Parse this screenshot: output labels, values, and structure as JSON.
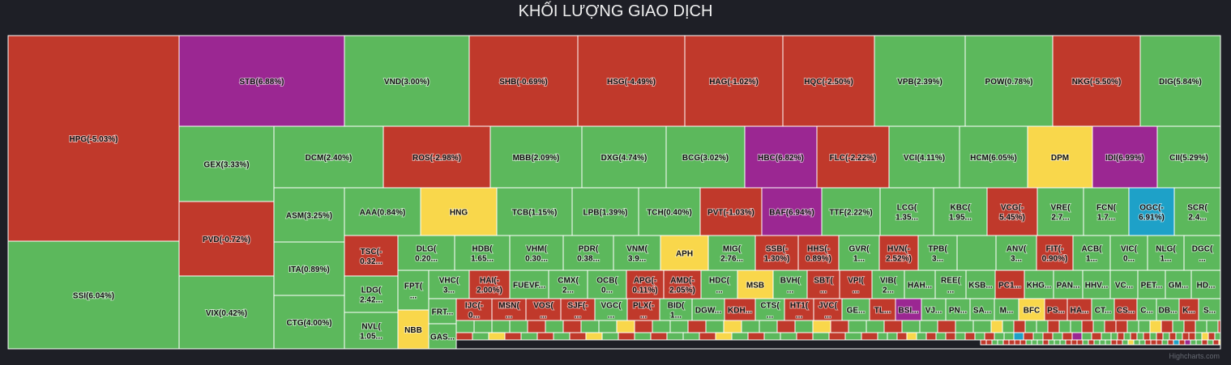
{
  "title": "KHỐI LƯỢNG GIAO DỊCH",
  "credits": "Highcharts.com",
  "colors": {
    "background": "#1e1f26",
    "up": "#5cb85c",
    "down": "#c0392b",
    "ceiling": "#9b2792",
    "reference": "#f9d74b",
    "floor": "#1ea1c8",
    "border": "#ffffff"
  },
  "chart_data": {
    "type": "treemap",
    "title": "KHỐI LƯỢNG GIAO DỊCH",
    "tiles": [
      {
        "ticker": "HPG",
        "change_pct": -5.03,
        "label": "HPG(-5.03%)",
        "status": "down"
      },
      {
        "ticker": "SSI",
        "change_pct": 6.04,
        "label": "SSI(6.04%)",
        "status": "up"
      },
      {
        "ticker": "STB",
        "change_pct": 6.88,
        "label": "STB(6.88%)",
        "status": "ceiling"
      },
      {
        "ticker": "VND",
        "change_pct": 3.0,
        "label": "VND(3.00%)",
        "status": "up"
      },
      {
        "ticker": "SHB",
        "change_pct": -0.69,
        "label": "SHB(-0.69%)",
        "status": "down"
      },
      {
        "ticker": "HSG",
        "change_pct": -4.49,
        "label": "HSG(-4.49%)",
        "status": "down"
      },
      {
        "ticker": "HAG",
        "change_pct": -1.02,
        "label": "HAG(-1.02%)",
        "status": "down"
      },
      {
        "ticker": "HQC",
        "change_pct": -2.5,
        "label": "HQC(-2.50%)",
        "status": "down"
      },
      {
        "ticker": "VPB",
        "change_pct": 2.39,
        "label": "VPB(2.39%)",
        "status": "up"
      },
      {
        "ticker": "POW",
        "change_pct": 0.78,
        "label": "POW(0.78%)",
        "status": "up"
      },
      {
        "ticker": "NKG",
        "change_pct": -5.5,
        "label": "NKG(-5.50%)",
        "status": "down"
      },
      {
        "ticker": "DIG",
        "change_pct": 5.84,
        "label": "DIG(5.84%)",
        "status": "up"
      },
      {
        "ticker": "GEX",
        "change_pct": 3.33,
        "label": "GEX(3.33%)",
        "status": "up"
      },
      {
        "ticker": "PVD",
        "change_pct": -0.72,
        "label": "PVD(-0.72%)",
        "status": "down"
      },
      {
        "ticker": "VIX",
        "change_pct": 0.42,
        "label": "VIX(0.42%)",
        "status": "up"
      },
      {
        "ticker": "DCM",
        "change_pct": 2.4,
        "label": "DCM(2.40%)",
        "status": "up"
      },
      {
        "ticker": "ROS",
        "change_pct": -2.98,
        "label": "ROS(-2.98%)",
        "status": "down"
      },
      {
        "ticker": "MBB",
        "change_pct": 2.09,
        "label": "MBB(2.09%)",
        "status": "up"
      },
      {
        "ticker": "DXG",
        "change_pct": 4.74,
        "label": "DXG(4.74%)",
        "status": "up"
      },
      {
        "ticker": "BCG",
        "change_pct": 3.02,
        "label": "BCG(3.02%)",
        "status": "up"
      },
      {
        "ticker": "HBC",
        "change_pct": 6.82,
        "label": "HBC(6.82%)",
        "status": "ceiling"
      },
      {
        "ticker": "FLC",
        "change_pct": -2.22,
        "label": "FLC(-2.22%)",
        "status": "down"
      },
      {
        "ticker": "VCI",
        "change_pct": 4.11,
        "label": "VCI(4.11%)",
        "status": "up"
      },
      {
        "ticker": "HCM",
        "change_pct": 6.05,
        "label": "HCM(6.05%)",
        "status": "up"
      },
      {
        "ticker": "DPM",
        "change_pct": null,
        "label": "DPM",
        "status": "reference"
      },
      {
        "ticker": "IDI",
        "change_pct": 6.99,
        "label": "IDI(6.99%)",
        "status": "ceiling"
      },
      {
        "ticker": "CII",
        "change_pct": 5.29,
        "label": "CII(5.29%)",
        "status": "up"
      },
      {
        "ticker": "ASM",
        "change_pct": 3.25,
        "label": "ASM(3.25%)",
        "status": "up"
      },
      {
        "ticker": "ITA",
        "change_pct": 0.89,
        "label": "ITA(0.89%)",
        "status": "up"
      },
      {
        "ticker": "CTG",
        "change_pct": 4.0,
        "label": "CTG(4.00%)",
        "status": "up"
      },
      {
        "ticker": "AAA",
        "change_pct": 0.84,
        "label": "AAA(0.84%)",
        "status": "up"
      },
      {
        "ticker": "HNG",
        "change_pct": null,
        "label": "HNG",
        "status": "reference"
      },
      {
        "ticker": "TCB",
        "change_pct": 1.15,
        "label": "TCB(1.15%)",
        "status": "up"
      },
      {
        "ticker": "LPB",
        "change_pct": 1.39,
        "label": "LPB(1.39%)",
        "status": "up"
      },
      {
        "ticker": "TCH",
        "change_pct": 0.4,
        "label": "TCH(0.40%)",
        "status": "up"
      },
      {
        "ticker": "PVT",
        "change_pct": -1.03,
        "label": "PVT(-1.03%)",
        "status": "down"
      },
      {
        "ticker": "BAF",
        "change_pct": 6.94,
        "label": "BAF(6.94%)",
        "status": "ceiling"
      },
      {
        "ticker": "TTF",
        "change_pct": 2.22,
        "label": "TTF(2.22%)",
        "status": "up"
      },
      {
        "ticker": "LCG",
        "change_pct": null,
        "label": "LCG(1.35...",
        "status": "up"
      },
      {
        "ticker": "KBC",
        "change_pct": null,
        "label": "KBC(1.95...",
        "status": "up"
      },
      {
        "ticker": "VCG",
        "change_pct": -5.45,
        "label": "VCG(-5.45%)",
        "status": "down"
      },
      {
        "ticker": "VRE",
        "change_pct": null,
        "label": "VRE(2.7...",
        "status": "up"
      },
      {
        "ticker": "FCN",
        "change_pct": null,
        "label": "FCN(1.7...",
        "status": "up"
      },
      {
        "ticker": "OGC",
        "change_pct": -6.91,
        "label": "OGC(-6.91%)",
        "status": "floor"
      },
      {
        "ticker": "SCR",
        "change_pct": null,
        "label": "SCR(2.4...",
        "status": "up"
      },
      {
        "ticker": "LDG",
        "change_pct": null,
        "label": "LDG(2.42...",
        "status": "up"
      },
      {
        "ticker": "NVL",
        "change_pct": null,
        "label": "NVL(1.05...",
        "status": "up"
      },
      {
        "ticker": "TSC",
        "change_pct": null,
        "label": "TSC(-0.32...",
        "status": "down"
      },
      {
        "ticker": "DLG",
        "change_pct": null,
        "label": "DLG(0.20...",
        "status": "up"
      },
      {
        "ticker": "HDB",
        "change_pct": null,
        "label": "HDB(1.65...",
        "status": "up"
      },
      {
        "ticker": "VHM",
        "change_pct": null,
        "label": "VHM(0.30...",
        "status": "up"
      },
      {
        "ticker": "PDR",
        "change_pct": null,
        "label": "PDR(0.38...",
        "status": "up"
      },
      {
        "ticker": "VNM",
        "change_pct": null,
        "label": "VNM(3.9...",
        "status": "up"
      },
      {
        "ticker": "APH",
        "change_pct": null,
        "label": "APH",
        "status": "reference"
      },
      {
        "ticker": "MIG",
        "change_pct": null,
        "label": "MIG(2.76...",
        "status": "up"
      },
      {
        "ticker": "SSB",
        "change_pct": -1.3,
        "label": "SSB(-1.30%)",
        "status": "down"
      },
      {
        "ticker": "HHS",
        "change_pct": -0.89,
        "label": "HHS(-0.89%)",
        "status": "down"
      },
      {
        "ticker": "GVR",
        "change_pct": null,
        "label": "GVR(1...",
        "status": "up"
      },
      {
        "ticker": "HVN",
        "change_pct": -2.52,
        "label": "HVN(-2.52%)",
        "status": "down"
      },
      {
        "ticker": "TPB",
        "change_pct": null,
        "label": "TPB(3...",
        "status": "up"
      },
      {
        "ticker": "ANV",
        "change_pct": null,
        "label": "ANV(3...",
        "status": "up"
      },
      {
        "ticker": "FIT",
        "change_pct": -0.9,
        "label": "FIT(-0.90%)",
        "status": "down"
      },
      {
        "ticker": "ACB",
        "change_pct": null,
        "label": "ACB(1...",
        "status": "up"
      },
      {
        "ticker": "VIC",
        "change_pct": null,
        "label": "VIC(0...",
        "status": "up"
      },
      {
        "ticker": "NLG",
        "change_pct": null,
        "label": "NLG(1...",
        "status": "up"
      },
      {
        "ticker": "DGC",
        "change_pct": null,
        "label": "DGC(...",
        "status": "up"
      },
      {
        "ticker": "FPT",
        "change_pct": null,
        "label": "FPT(...",
        "status": "up"
      },
      {
        "ticker": "VHC",
        "change_pct": null,
        "label": "VHC(3...",
        "status": "up"
      },
      {
        "ticker": "HAI",
        "change_pct": -2.0,
        "label": "HAI(-2.00%)",
        "status": "down"
      },
      {
        "ticker": "FUEVFVND",
        "change_pct": null,
        "label": "FUEVF...",
        "status": "up"
      },
      {
        "ticker": "CMX",
        "change_pct": null,
        "label": "CMX(2...",
        "status": "up"
      },
      {
        "ticker": "OCB",
        "change_pct": null,
        "label": "OCB(0...",
        "status": "up"
      },
      {
        "ticker": "APG",
        "change_pct": -0.11,
        "label": "APG(-0.11%)",
        "status": "down"
      },
      {
        "ticker": "AMD",
        "change_pct": -2.05,
        "label": "AMD(-2.05%)",
        "status": "down"
      },
      {
        "ticker": "HDC",
        "change_pct": null,
        "label": "HDC(...",
        "status": "up"
      },
      {
        "ticker": "MSB",
        "change_pct": null,
        "label": "MSB",
        "status": "reference"
      },
      {
        "ticker": "BVH",
        "change_pct": null,
        "label": "BVH(...",
        "status": "up"
      },
      {
        "ticker": "SBT",
        "change_pct": null,
        "label": "SBT(...",
        "status": "down"
      },
      {
        "ticker": "VPI",
        "change_pct": null,
        "label": "VPI(...",
        "status": "down"
      },
      {
        "ticker": "VIB",
        "change_pct": null,
        "label": "VIB(2...",
        "status": "up"
      },
      {
        "ticker": "HAH",
        "change_pct": null,
        "label": "HAH...",
        "status": "up"
      },
      {
        "ticker": "REE",
        "change_pct": null,
        "label": "REE(...",
        "status": "up"
      },
      {
        "ticker": "KSB",
        "change_pct": null,
        "label": "KSB...",
        "status": "up"
      },
      {
        "ticker": "PC1",
        "change_pct": null,
        "label": "PC1...",
        "status": "down"
      },
      {
        "ticker": "KHG",
        "change_pct": null,
        "label": "KHG...",
        "status": "up"
      },
      {
        "ticker": "PAN",
        "change_pct": null,
        "label": "PAN...",
        "status": "up"
      },
      {
        "ticker": "HHV",
        "change_pct": null,
        "label": "HHV...",
        "status": "up"
      },
      {
        "ticker": "VC",
        "change_pct": null,
        "label": "VC...",
        "status": "up"
      },
      {
        "ticker": "PET",
        "change_pct": null,
        "label": "PET...",
        "status": "up"
      },
      {
        "ticker": "GM",
        "change_pct": null,
        "label": "GM...",
        "status": "up"
      },
      {
        "ticker": "HD",
        "change_pct": null,
        "label": "HD...",
        "status": "up"
      },
      {
        "ticker": "NBB",
        "change_pct": null,
        "label": "NBB",
        "status": "reference"
      },
      {
        "ticker": "FRT",
        "change_pct": null,
        "label": "FRT...",
        "status": "up"
      },
      {
        "ticker": "GAS",
        "change_pct": null,
        "label": "GAS...",
        "status": "up"
      },
      {
        "ticker": "IJC",
        "change_pct": null,
        "label": "IJC(-0...",
        "status": "down"
      },
      {
        "ticker": "MSN",
        "change_pct": null,
        "label": "MSN(...",
        "status": "down"
      },
      {
        "ticker": "VOS",
        "change_pct": null,
        "label": "VOS(...",
        "status": "down"
      },
      {
        "ticker": "SJF",
        "change_pct": null,
        "label": "SJF(-...",
        "status": "down"
      },
      {
        "ticker": "VGC",
        "change_pct": null,
        "label": "VGC(...",
        "status": "up"
      },
      {
        "ticker": "PLX",
        "change_pct": null,
        "label": "PLX(-...",
        "status": "down"
      },
      {
        "ticker": "BID",
        "change_pct": null,
        "label": "BID(1...",
        "status": "up"
      },
      {
        "ticker": "DGW",
        "change_pct": null,
        "label": "DGW...",
        "status": "up"
      },
      {
        "ticker": "KDH",
        "change_pct": null,
        "label": "KDH...",
        "status": "down"
      },
      {
        "ticker": "CTS",
        "change_pct": null,
        "label": "CTS(...",
        "status": "up"
      },
      {
        "ticker": "HT1",
        "change_pct": null,
        "label": "HT1(...",
        "status": "down"
      },
      {
        "ticker": "JVC",
        "change_pct": null,
        "label": "JVC(...",
        "status": "down"
      },
      {
        "ticker": "GE",
        "change_pct": null,
        "label": "GE...",
        "status": "up"
      },
      {
        "ticker": "TL",
        "change_pct": null,
        "label": "TL...",
        "status": "down"
      },
      {
        "ticker": "BSI",
        "change_pct": null,
        "label": "BSI...",
        "status": "ceiling"
      },
      {
        "ticker": "VJ",
        "change_pct": null,
        "label": "VJ...",
        "status": "up"
      },
      {
        "ticker": "PN",
        "change_pct": null,
        "label": "PN...",
        "status": "up"
      },
      {
        "ticker": "SA",
        "change_pct": null,
        "label": "SA...",
        "status": "up"
      },
      {
        "ticker": "M",
        "change_pct": null,
        "label": "M...",
        "status": "up"
      },
      {
        "ticker": "BFC",
        "change_pct": null,
        "label": "BFC",
        "status": "reference"
      },
      {
        "ticker": "PS",
        "change_pct": null,
        "label": "PS...",
        "status": "down"
      },
      {
        "ticker": "HA",
        "change_pct": null,
        "label": "HA...",
        "status": "down"
      },
      {
        "ticker": "CT",
        "change_pct": null,
        "label": "CT...",
        "status": "up"
      },
      {
        "ticker": "CS",
        "change_pct": null,
        "label": "CS...",
        "status": "down"
      },
      {
        "ticker": "C",
        "change_pct": null,
        "label": "C...",
        "status": "up"
      },
      {
        "ticker": "DB",
        "change_pct": null,
        "label": "DB...",
        "status": "up"
      },
      {
        "ticker": "K",
        "change_pct": null,
        "label": "K...",
        "status": "down"
      },
      {
        "ticker": "S",
        "change_pct": null,
        "label": "S...",
        "status": "up"
      }
    ]
  }
}
